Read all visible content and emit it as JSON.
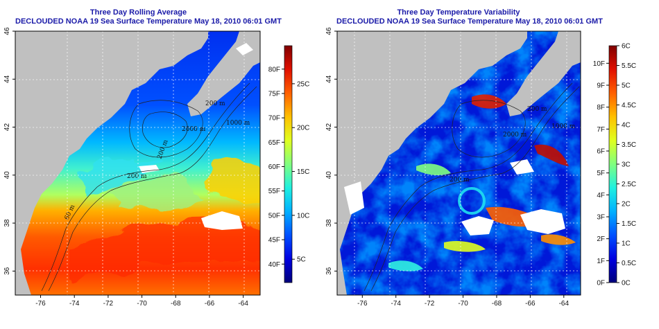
{
  "left_panel": {
    "title": "Three Day Rolling Average",
    "subtitle": "DECLOUDED NOAA 19 Sea Surface Temperature May 18, 2010 06:01 GMT",
    "colorbar": {
      "colors": [
        "#00007a",
        "#0000e0",
        "#0050ff",
        "#00b0ff",
        "#20f0e0",
        "#80ff80",
        "#e0ff20",
        "#ffc000",
        "#ff6000",
        "#e01000",
        "#800000"
      ],
      "fahrenheit_labels": [
        "40F",
        "45F",
        "50F",
        "55F",
        "60F",
        "65F",
        "70F",
        "75F",
        "80F"
      ],
      "celsius_labels": [
        "5C",
        "10C",
        "15C",
        "20C",
        "25C"
      ]
    },
    "contour_labels": [
      "200 m",
      "1000 m",
      "200 m",
      "2000 m",
      "200 m",
      "60 m"
    ]
  },
  "right_panel": {
    "title": "Three Day Temperature Variability",
    "subtitle": "DECLOUDED NOAA 19 Sea Surface Temperature May 18, 2010 06:01 GMT",
    "colorbar": {
      "colors": [
        "#00007a",
        "#0000e0",
        "#0050ff",
        "#00b0ff",
        "#20f0e0",
        "#80ff80",
        "#e0ff20",
        "#ffc000",
        "#ff6000",
        "#e01000",
        "#800000"
      ],
      "fahrenheit_labels": [
        "0F",
        "1F",
        "2F",
        "3F",
        "4F",
        "5F",
        "6F",
        "7F",
        "8F",
        "9F",
        "10F"
      ],
      "celsius_labels": [
        "0C",
        "0.5C",
        "1C",
        "1.5C",
        "2C",
        "2.5C",
        "3C",
        "3.5C",
        "4C",
        "4.5C",
        "5C",
        "5.5C",
        "6C"
      ]
    },
    "contour_labels": [
      "200 m",
      "1000 m",
      "200 m",
      "2000 m",
      "200 m"
    ]
  },
  "axes": {
    "lon_ticks": [
      "-76",
      "-74",
      "-72",
      "-70",
      "-68",
      "-66",
      "-64"
    ],
    "lat_ticks": [
      "36",
      "38",
      "40",
      "42",
      "44",
      "46"
    ]
  },
  "colors": {
    "land": "#c0c0c0",
    "cloud": "#ffffff",
    "title": "#1a1aa8"
  }
}
